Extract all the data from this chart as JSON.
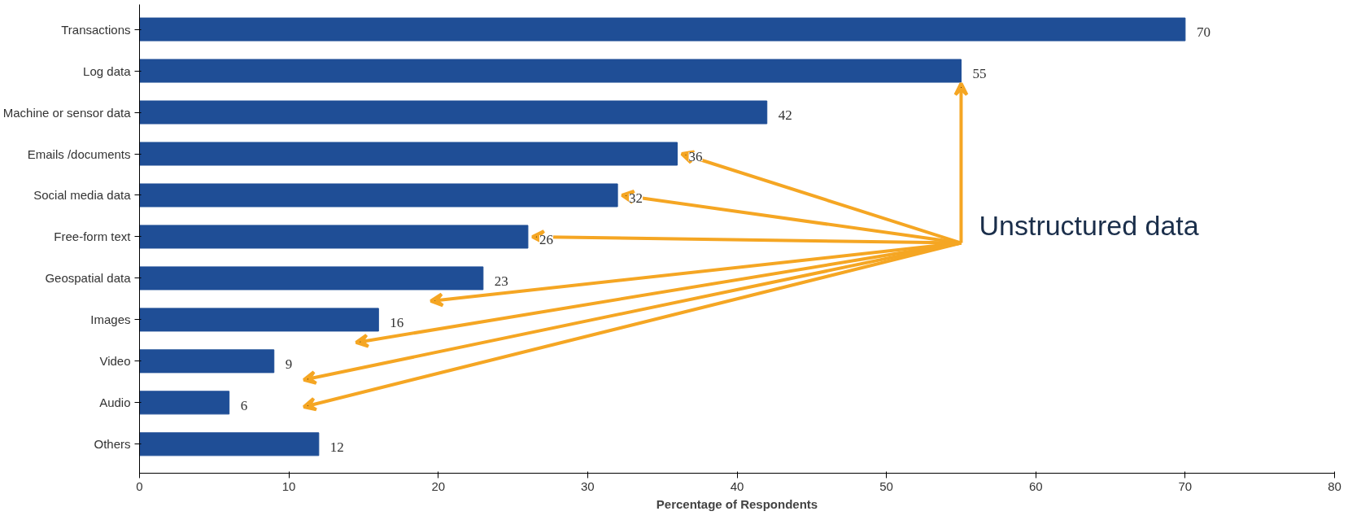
{
  "chart_data": {
    "type": "bar",
    "orientation": "horizontal",
    "categories": [
      "Transactions",
      "Log data",
      "Machine or sensor data",
      "Emails /documents",
      "Social media data",
      "Free-form text",
      "Geospatial data",
      "Images",
      "Video",
      "Audio",
      "Others"
    ],
    "values": [
      70,
      55,
      42,
      36,
      32,
      26,
      23,
      16,
      9,
      6,
      12
    ],
    "color": "#1f4e96",
    "data_labels": true,
    "xlim": [
      0,
      80
    ],
    "xticks": [
      0,
      10,
      20,
      30,
      40,
      50,
      60,
      70,
      80
    ],
    "xlabel": "Percentage of Respondents",
    "annotations": [
      {
        "text": "Unstructured data",
        "x": 55,
        "y": "Log data"
      }
    ],
    "grid": false
  }
}
